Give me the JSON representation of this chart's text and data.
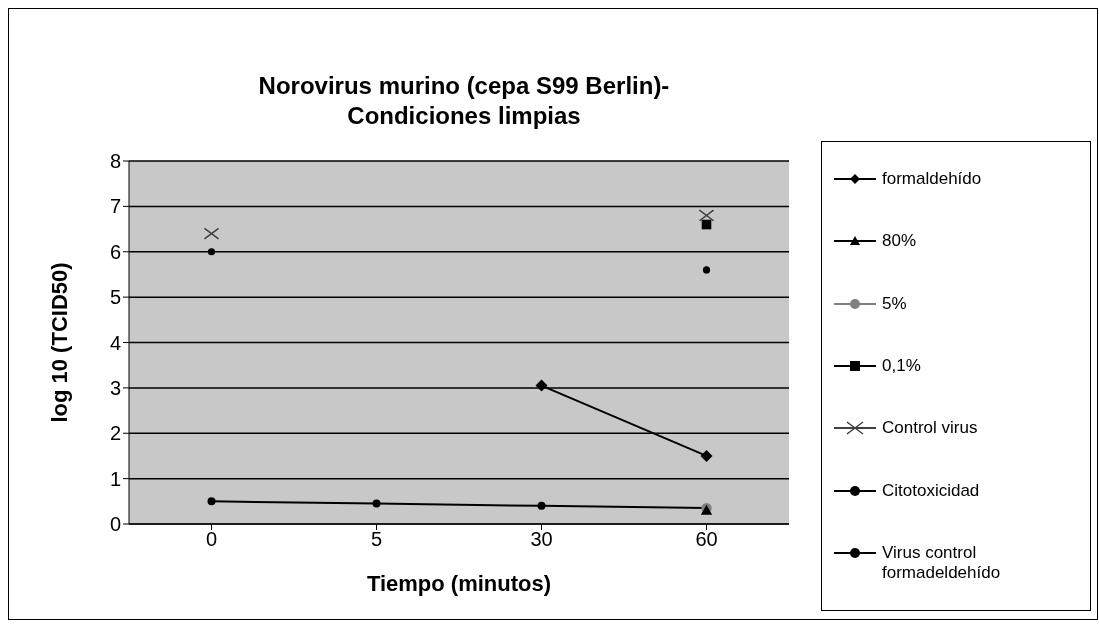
{
  "chart_data": {
    "type": "line",
    "title": "Norovirus murino (cepa S99 Berlin)-\nCondiciones limpias",
    "xlabel": "Tiempo (minutos)",
    "ylabel": "log 10 (TCID50)",
    "categories": [
      "0",
      "5",
      "30",
      "60"
    ],
    "ylim": [
      0,
      8
    ],
    "yticks": [
      0,
      1,
      2,
      3,
      4,
      5,
      6,
      7,
      8
    ],
    "grid": "y",
    "legend": "right",
    "line_style": "solid",
    "series": [
      {
        "name": "formaldehído",
        "color": "#000000",
        "marker": "diamond",
        "values": [
          null,
          null,
          3.05,
          1.5
        ]
      },
      {
        "name": "80%",
        "color": "#000000",
        "marker": "triangle",
        "values": [
          null,
          null,
          null,
          0.3
        ]
      },
      {
        "name": "5%",
        "color": "#808080",
        "marker": "circle",
        "values": [
          null,
          null,
          null,
          0.35
        ]
      },
      {
        "name": "0,1%",
        "color": "#000000",
        "marker": "square",
        "values": [
          null,
          null,
          null,
          6.6
        ]
      },
      {
        "name": "Control virus",
        "color": "#404040",
        "marker": "cross",
        "values": [
          6.4,
          null,
          null,
          6.8
        ]
      },
      {
        "name": "Citotoxicidad",
        "color": "#000000",
        "marker": "circle",
        "values": [
          0.5,
          0.45,
          0.4,
          0.35
        ]
      },
      {
        "name": "Virus control\nformadeldehído",
        "color": "#000000",
        "marker": "circle",
        "values": [
          6.0,
          null,
          null,
          5.6
        ]
      }
    ]
  }
}
